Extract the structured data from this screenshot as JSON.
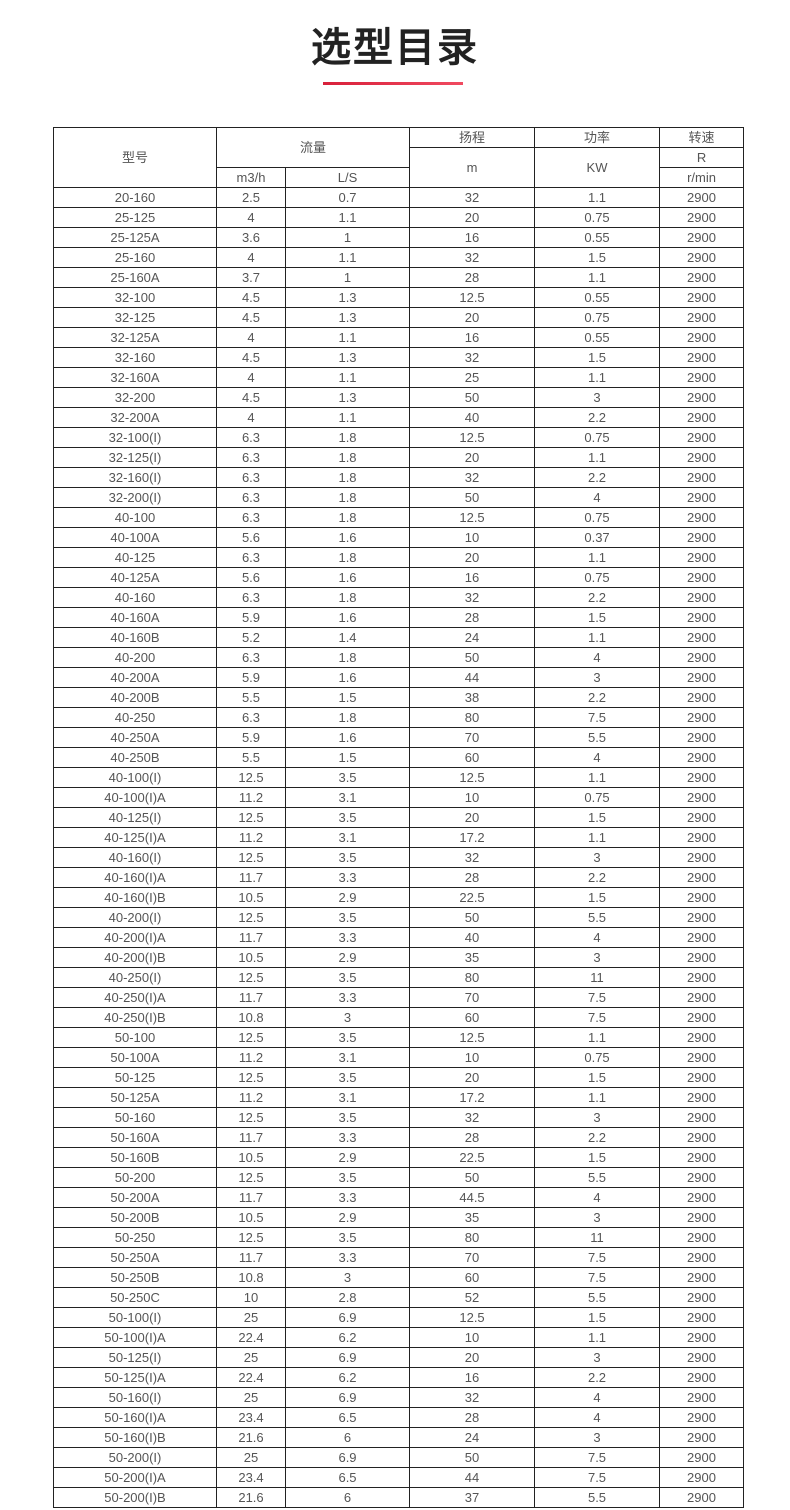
{
  "title": "选型目录",
  "accent_color": "#e0263f",
  "header": {
    "model": "型号",
    "flow": "流量",
    "flow_m3h": "m3/h",
    "flow_ls": "L/S",
    "head": "扬程",
    "head_unit": "m",
    "power": "功率",
    "power_unit": "KW",
    "speed": "转速",
    "speed_r": "R",
    "speed_unit": "r/min"
  },
  "rows": [
    [
      "20-160",
      "2.5",
      "0.7",
      "32",
      "1.1",
      "2900"
    ],
    [
      "25-125",
      "4",
      "1.1",
      "20",
      "0.75",
      "2900"
    ],
    [
      "25-125A",
      "3.6",
      "1",
      "16",
      "0.55",
      "2900"
    ],
    [
      "25-160",
      "4",
      "1.1",
      "32",
      "1.5",
      "2900"
    ],
    [
      "25-160A",
      "3.7",
      "1",
      "28",
      "1.1",
      "2900"
    ],
    [
      "32-100",
      "4.5",
      "1.3",
      "12.5",
      "0.55",
      "2900"
    ],
    [
      "32-125",
      "4.5",
      "1.3",
      "20",
      "0.75",
      "2900"
    ],
    [
      "32-125A",
      "4",
      "1.1",
      "16",
      "0.55",
      "2900"
    ],
    [
      "32-160",
      "4.5",
      "1.3",
      "32",
      "1.5",
      "2900"
    ],
    [
      "32-160A",
      "4",
      "1.1",
      "25",
      "1.1",
      "2900"
    ],
    [
      "32-200",
      "4.5",
      "1.3",
      "50",
      "3",
      "2900"
    ],
    [
      "32-200A",
      "4",
      "1.1",
      "40",
      "2.2",
      "2900"
    ],
    [
      "32-100(I)",
      "6.3",
      "1.8",
      "12.5",
      "0.75",
      "2900"
    ],
    [
      "32-125(I)",
      "6.3",
      "1.8",
      "20",
      "1.1",
      "2900"
    ],
    [
      "32-160(I)",
      "6.3",
      "1.8",
      "32",
      "2.2",
      "2900"
    ],
    [
      "32-200(I)",
      "6.3",
      "1.8",
      "50",
      "4",
      "2900"
    ],
    [
      "40-100",
      "6.3",
      "1.8",
      "12.5",
      "0.75",
      "2900"
    ],
    [
      "40-100A",
      "5.6",
      "1.6",
      "10",
      "0.37",
      "2900"
    ],
    [
      "40-125",
      "6.3",
      "1.8",
      "20",
      "1.1",
      "2900"
    ],
    [
      "40-125A",
      "5.6",
      "1.6",
      "16",
      "0.75",
      "2900"
    ],
    [
      "40-160",
      "6.3",
      "1.8",
      "32",
      "2.2",
      "2900"
    ],
    [
      "40-160A",
      "5.9",
      "1.6",
      "28",
      "1.5",
      "2900"
    ],
    [
      "40-160B",
      "5.2",
      "1.4",
      "24",
      "1.1",
      "2900"
    ],
    [
      "40-200",
      "6.3",
      "1.8",
      "50",
      "4",
      "2900"
    ],
    [
      "40-200A",
      "5.9",
      "1.6",
      "44",
      "3",
      "2900"
    ],
    [
      "40-200B",
      "5.5",
      "1.5",
      "38",
      "2.2",
      "2900"
    ],
    [
      "40-250",
      "6.3",
      "1.8",
      "80",
      "7.5",
      "2900"
    ],
    [
      "40-250A",
      "5.9",
      "1.6",
      "70",
      "5.5",
      "2900"
    ],
    [
      "40-250B",
      "5.5",
      "1.5",
      "60",
      "4",
      "2900"
    ],
    [
      "40-100(I)",
      "12.5",
      "3.5",
      "12.5",
      "1.1",
      "2900"
    ],
    [
      "40-100(I)A",
      "11.2",
      "3.1",
      "10",
      "0.75",
      "2900"
    ],
    [
      "40-125(I)",
      "12.5",
      "3.5",
      "20",
      "1.5",
      "2900"
    ],
    [
      "40-125(I)A",
      "11.2",
      "3.1",
      "17.2",
      "1.1",
      "2900"
    ],
    [
      "40-160(I)",
      "12.5",
      "3.5",
      "32",
      "3",
      "2900"
    ],
    [
      "40-160(I)A",
      "11.7",
      "3.3",
      "28",
      "2.2",
      "2900"
    ],
    [
      "40-160(I)B",
      "10.5",
      "2.9",
      "22.5",
      "1.5",
      "2900"
    ],
    [
      "40-200(I)",
      "12.5",
      "3.5",
      "50",
      "5.5",
      "2900"
    ],
    [
      "40-200(I)A",
      "11.7",
      "3.3",
      "40",
      "4",
      "2900"
    ],
    [
      "40-200(I)B",
      "10.5",
      "2.9",
      "35",
      "3",
      "2900"
    ],
    [
      "40-250(I)",
      "12.5",
      "3.5",
      "80",
      "11",
      "2900"
    ],
    [
      "40-250(I)A",
      "11.7",
      "3.3",
      "70",
      "7.5",
      "2900"
    ],
    [
      "40-250(I)B",
      "10.8",
      "3",
      "60",
      "7.5",
      "2900"
    ],
    [
      "50-100",
      "12.5",
      "3.5",
      "12.5",
      "1.1",
      "2900"
    ],
    [
      "50-100A",
      "11.2",
      "3.1",
      "10",
      "0.75",
      "2900"
    ],
    [
      "50-125",
      "12.5",
      "3.5",
      "20",
      "1.5",
      "2900"
    ],
    [
      "50-125A",
      "11.2",
      "3.1",
      "17.2",
      "1.1",
      "2900"
    ],
    [
      "50-160",
      "12.5",
      "3.5",
      "32",
      "3",
      "2900"
    ],
    [
      "50-160A",
      "11.7",
      "3.3",
      "28",
      "2.2",
      "2900"
    ],
    [
      "50-160B",
      "10.5",
      "2.9",
      "22.5",
      "1.5",
      "2900"
    ],
    [
      "50-200",
      "12.5",
      "3.5",
      "50",
      "5.5",
      "2900"
    ],
    [
      "50-200A",
      "11.7",
      "3.3",
      "44.5",
      "4",
      "2900"
    ],
    [
      "50-200B",
      "10.5",
      "2.9",
      "35",
      "3",
      "2900"
    ],
    [
      "50-250",
      "12.5",
      "3.5",
      "80",
      "11",
      "2900"
    ],
    [
      "50-250A",
      "11.7",
      "3.3",
      "70",
      "7.5",
      "2900"
    ],
    [
      "50-250B",
      "10.8",
      "3",
      "60",
      "7.5",
      "2900"
    ],
    [
      "50-250C",
      "10",
      "2.8",
      "52",
      "5.5",
      "2900"
    ],
    [
      "50-100(I)",
      "25",
      "6.9",
      "12.5",
      "1.5",
      "2900"
    ],
    [
      "50-100(I)A",
      "22.4",
      "6.2",
      "10",
      "1.1",
      "2900"
    ],
    [
      "50-125(I)",
      "25",
      "6.9",
      "20",
      "3",
      "2900"
    ],
    [
      "50-125(I)A",
      "22.4",
      "6.2",
      "16",
      "2.2",
      "2900"
    ],
    [
      "50-160(I)",
      "25",
      "6.9",
      "32",
      "4",
      "2900"
    ],
    [
      "50-160(I)A",
      "23.4",
      "6.5",
      "28",
      "4",
      "2900"
    ],
    [
      "50-160(I)B",
      "21.6",
      "6",
      "24",
      "3",
      "2900"
    ],
    [
      "50-200(I)",
      "25",
      "6.9",
      "50",
      "7.5",
      "2900"
    ],
    [
      "50-200(I)A",
      "23.4",
      "6.5",
      "44",
      "7.5",
      "2900"
    ],
    [
      "50-200(I)B",
      "21.6",
      "6",
      "37",
      "5.5",
      "2900"
    ]
  ]
}
